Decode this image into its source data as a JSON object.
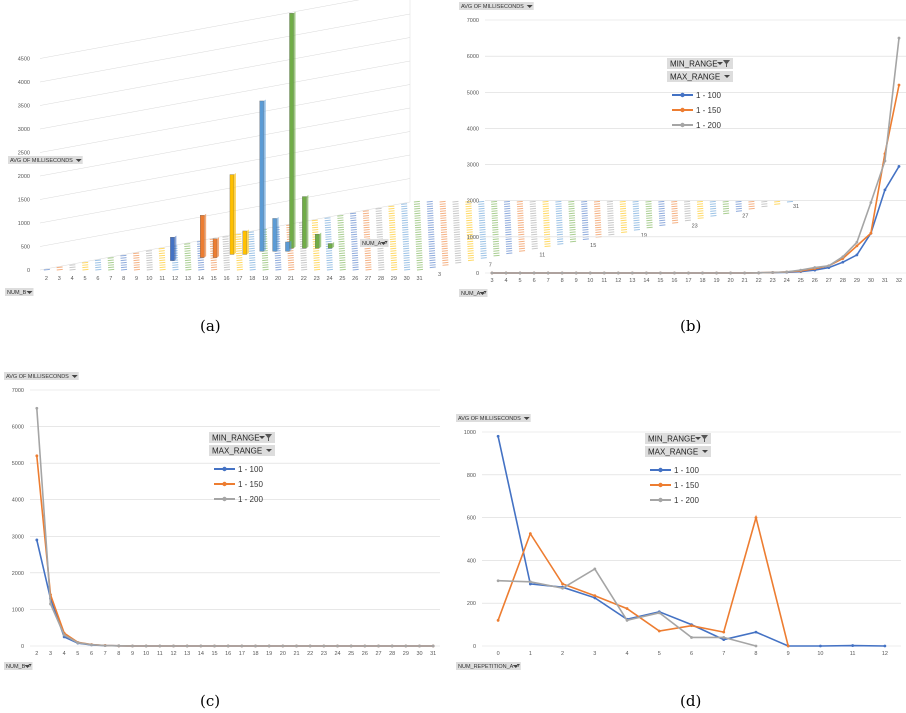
{
  "colors": {
    "s100": "#4472c4",
    "s150": "#ed7d31",
    "s200": "#a5a5a5",
    "grid": "#d9d9d9",
    "button": "#dddddd"
  },
  "legend": {
    "filter1": "MIN_RANGE",
    "filter2": "MAX_RANGE",
    "items": [
      "1 - 100",
      "1 - 150",
      "1 - 200"
    ]
  },
  "panel_labels": [
    "(a)",
    "(b)",
    "(c)",
    "(d)"
  ],
  "chart_data": [
    {
      "id": "a",
      "type": "bar",
      "variant": "3d-column",
      "value_field": "AVG OF MILLISECONDS",
      "x_field": "NUM_B",
      "depth_field": "NUM_A",
      "y_ticks": [
        "0",
        "500",
        "1000",
        "1500",
        "2000",
        "2500",
        "3000",
        "3500",
        "4000",
        "4500"
      ],
      "x_categories": [
        "2",
        "3",
        "4",
        "5",
        "6",
        "7",
        "8",
        "9",
        "10",
        "11",
        "12",
        "13",
        "14",
        "15",
        "16",
        "17",
        "18",
        "19",
        "20",
        "21",
        "22",
        "23",
        "24",
        "25",
        "26",
        "27",
        "28",
        "29",
        "30",
        "31"
      ],
      "depth_ticks": [
        "3",
        "7",
        "11",
        "15",
        "19",
        "23",
        "27",
        "31"
      ],
      "ylim": [
        0,
        5000
      ],
      "bars": [
        {
          "x": 12,
          "d": 31,
          "v": 5000
        },
        {
          "x": 11,
          "d": 27,
          "v": 3200
        },
        {
          "x": 10,
          "d": 23,
          "v": 1700
        },
        {
          "x": 9,
          "d": 19,
          "v": 900
        },
        {
          "x": 8,
          "d": 15,
          "v": 500
        },
        {
          "x": 13,
          "d": 31,
          "v": 1100
        },
        {
          "x": 12,
          "d": 27,
          "v": 700
        },
        {
          "x": 11,
          "d": 23,
          "v": 500
        },
        {
          "x": 10,
          "d": 19,
          "v": 400
        },
        {
          "x": 14,
          "d": 31,
          "v": 300
        },
        {
          "x": 13,
          "d": 27,
          "v": 200
        },
        {
          "x": 15,
          "d": 31,
          "v": 100
        }
      ]
    },
    {
      "id": "b",
      "type": "line",
      "ylabel": "AVG OF MILLISECONDS",
      "xfield": "NUM_A",
      "ylim": [
        0,
        7000
      ],
      "y_ticks": [
        0,
        1000,
        2000,
        3000,
        4000,
        5000,
        6000,
        7000
      ],
      "x": [
        3,
        4,
        5,
        6,
        7,
        8,
        9,
        10,
        11,
        12,
        13,
        14,
        15,
        16,
        17,
        18,
        19,
        20,
        21,
        22,
        23,
        24,
        25,
        26,
        27,
        28,
        29,
        30,
        31,
        32
      ],
      "series": [
        {
          "name": "1 - 100",
          "values": [
            0,
            0,
            0,
            0,
            0,
            0,
            0,
            0,
            0,
            0,
            0,
            0,
            0,
            0,
            0,
            0,
            0,
            0,
            0,
            5,
            10,
            20,
            40,
            80,
            150,
            300,
            500,
            1100,
            2300,
            2950
          ]
        },
        {
          "name": "1 - 150",
          "values": [
            0,
            0,
            0,
            0,
            0,
            0,
            0,
            0,
            0,
            0,
            0,
            0,
            0,
            0,
            0,
            0,
            0,
            0,
            0,
            5,
            15,
            30,
            60,
            120,
            200,
            400,
            750,
            1100,
            3300,
            5200
          ]
        },
        {
          "name": "1 - 200",
          "values": [
            0,
            0,
            0,
            0,
            0,
            0,
            0,
            0,
            0,
            0,
            0,
            0,
            0,
            0,
            0,
            0,
            0,
            0,
            0,
            5,
            15,
            30,
            80,
            150,
            200,
            450,
            850,
            1950,
            3100,
            6500
          ]
        }
      ]
    },
    {
      "id": "c",
      "type": "line",
      "ylabel": "AVG OF MILLISECONDS",
      "xfield": "NUM_B",
      "ylim": [
        0,
        7000
      ],
      "y_ticks": [
        0,
        1000,
        2000,
        3000,
        4000,
        5000,
        6000,
        7000
      ],
      "x": [
        2,
        3,
        4,
        5,
        6,
        7,
        8,
        9,
        10,
        11,
        12,
        13,
        14,
        15,
        16,
        17,
        18,
        19,
        20,
        21,
        22,
        23,
        24,
        25,
        26,
        27,
        28,
        29,
        30,
        31
      ],
      "series": [
        {
          "name": "1 - 100",
          "values": [
            2900,
            1300,
            250,
            80,
            30,
            10,
            5,
            0,
            0,
            0,
            0,
            0,
            0,
            0,
            0,
            0,
            0,
            0,
            0,
            0,
            0,
            0,
            0,
            0,
            0,
            0,
            0,
            0,
            0,
            0
          ]
        },
        {
          "name": "1 - 150",
          "values": [
            5200,
            1400,
            350,
            100,
            40,
            15,
            5,
            0,
            0,
            0,
            0,
            0,
            0,
            0,
            0,
            0,
            0,
            0,
            0,
            0,
            0,
            0,
            0,
            0,
            0,
            0,
            0,
            0,
            0,
            0
          ]
        },
        {
          "name": "1 - 200",
          "values": [
            6500,
            1150,
            300,
            90,
            35,
            10,
            5,
            0,
            0,
            0,
            0,
            0,
            0,
            0,
            0,
            0,
            0,
            0,
            0,
            0,
            0,
            0,
            0,
            0,
            0,
            0,
            0,
            0,
            0,
            0
          ]
        }
      ]
    },
    {
      "id": "d",
      "type": "line",
      "ylabel": "AVG OF MILLISECONDS",
      "xfield": "NUM_REPETITION_A",
      "ylim": [
        0,
        1000
      ],
      "y_ticks": [
        0,
        200,
        400,
        600,
        800,
        1000
      ],
      "x": [
        0,
        1,
        2,
        3,
        4,
        5,
        6,
        7,
        8,
        9,
        10,
        11,
        12
      ],
      "series": [
        {
          "name": "1 - 100",
          "values": [
            980,
            290,
            275,
            225,
            125,
            160,
            100,
            30,
            65,
            0,
            0,
            2,
            0
          ]
        },
        {
          "name": "1 - 150",
          "values": [
            120,
            525,
            290,
            235,
            175,
            70,
            95,
            65,
            600,
            0,
            null,
            null,
            null
          ]
        },
        {
          "name": "1 - 200",
          "values": [
            305,
            300,
            270,
            360,
            120,
            155,
            40,
            40,
            0,
            null,
            null,
            null,
            null
          ]
        }
      ]
    }
  ]
}
